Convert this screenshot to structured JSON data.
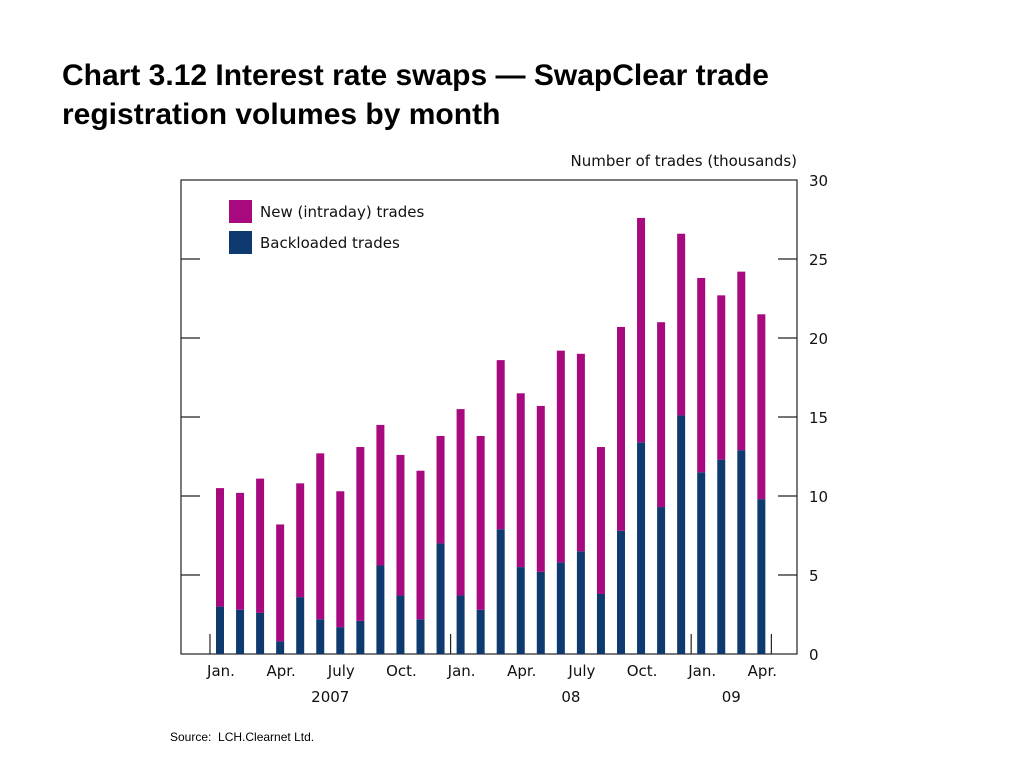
{
  "slide": {
    "title": "Chart 3.12 Interest rate swaps — SwapClear trade registration volumes by month",
    "source_label": "Source:",
    "source_value": "LCH.Clearnet Ltd."
  },
  "chart_data": {
    "type": "bar",
    "stacked": true,
    "ylabel": "Number of trades (thousands)",
    "ylim": [
      0,
      30
    ],
    "yticks": [
      0,
      5,
      10,
      15,
      20,
      25,
      30
    ],
    "grid": false,
    "legend_position": "top-left",
    "categories": [
      "2007-01",
      "2007-02",
      "2007-03",
      "2007-04",
      "2007-05",
      "2007-06",
      "2007-07",
      "2007-08",
      "2007-09",
      "2007-10",
      "2007-11",
      "2007-12",
      "2008-01",
      "2008-02",
      "2008-03",
      "2008-04",
      "2008-05",
      "2008-06",
      "2008-07",
      "2008-08",
      "2008-09",
      "2008-10",
      "2008-11",
      "2008-12",
      "2009-01",
      "2009-02",
      "2009-03",
      "2009-04"
    ],
    "month_ticks": [
      {
        "label": "Jan.",
        "index": 0
      },
      {
        "label": "Apr.",
        "index": 3
      },
      {
        "label": "July",
        "index": 6
      },
      {
        "label": "Oct.",
        "index": 9
      },
      {
        "label": "Jan.",
        "index": 12
      },
      {
        "label": "Apr.",
        "index": 15
      },
      {
        "label": "July",
        "index": 18
      },
      {
        "label": "Oct.",
        "index": 21
      },
      {
        "label": "Jan.",
        "index": 24
      },
      {
        "label": "Apr.",
        "index": 27
      }
    ],
    "year_labels": [
      {
        "label": "2007",
        "center_index": 5.5
      },
      {
        "label": "08",
        "center_index": 17.5
      },
      {
        "label": "09",
        "center_index": 25.5
      }
    ],
    "series": [
      {
        "name": "Backloaded trades",
        "color": "#0f3a70",
        "values": [
          3.0,
          2.8,
          2.6,
          0.8,
          3.6,
          2.2,
          1.7,
          2.1,
          5.6,
          3.7,
          2.2,
          7.0,
          3.7,
          2.8,
          7.9,
          5.5,
          5.2,
          5.8,
          6.5,
          3.8,
          7.8,
          13.4,
          9.3,
          15.1,
          11.5,
          12.3,
          12.9,
          9.8
        ]
      },
      {
        "name": "New (intraday) trades",
        "color": "#a8097e",
        "values": [
          7.5,
          7.4,
          8.5,
          7.4,
          7.2,
          10.5,
          8.6,
          11.0,
          8.9,
          8.9,
          9.4,
          6.8,
          11.8,
          11.0,
          10.7,
          11.0,
          10.5,
          13.4,
          12.5,
          9.3,
          12.9,
          14.2,
          11.7,
          11.5,
          12.3,
          10.4,
          11.3,
          11.7
        ]
      }
    ]
  }
}
